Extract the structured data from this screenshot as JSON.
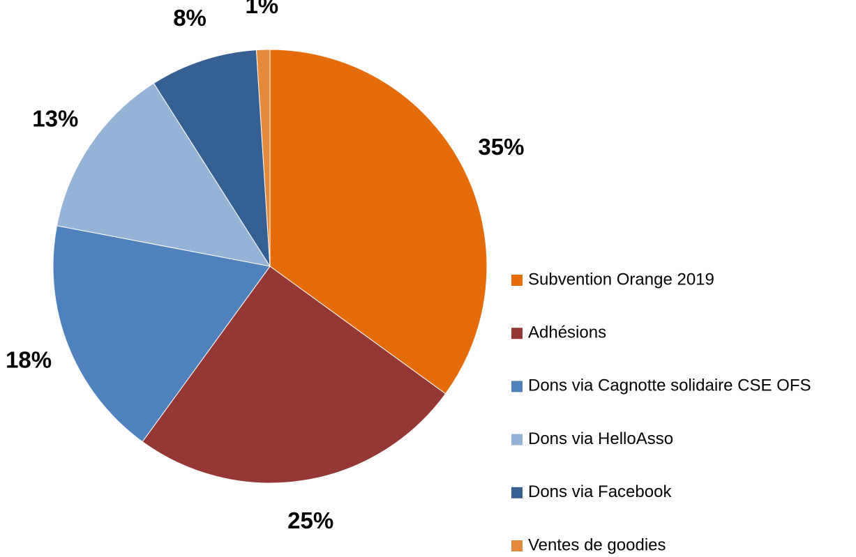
{
  "chart_data": {
    "type": "pie",
    "categories": [
      "Subvention Orange 2019",
      "Adhésions",
      "Dons via Cagnotte solidaire CSE OFS",
      "Dons via HelloAsso",
      "Dons via Facebook",
      "Ventes de goodies"
    ],
    "values": [
      35,
      25,
      18,
      13,
      8,
      1
    ],
    "value_labels": [
      "35%",
      "25%",
      "18%",
      "13%",
      "8%",
      "1%"
    ],
    "colors": [
      "#e46c0a",
      "#953735",
      "#4f81bd",
      "#95b3d7",
      "#376092",
      "#e48a3c"
    ],
    "legend": "right"
  }
}
